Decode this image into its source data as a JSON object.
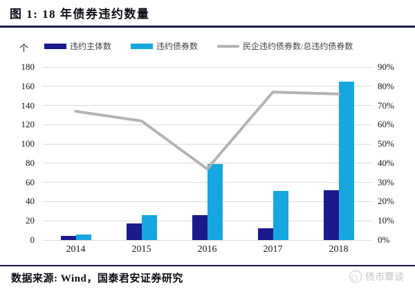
{
  "title": "图 1: 18 年债券违约数量",
  "unit_label": "个",
  "source_note": "数据来源: Wind，国泰君安证券研究",
  "watermark": {
    "text": "债市覃谈"
  },
  "colors": {
    "rule": "#15154b",
    "gridline": "#dadada",
    "entity_bar": "#1a1a8c",
    "bond_bar": "#17a7e0",
    "ratio_line": "#b3b3b3"
  },
  "chart_data": {
    "type": "bar",
    "subtype": "grouped-bar-with-line",
    "title": "18 年债券违约数量",
    "categories": [
      "2014",
      "2015",
      "2016",
      "2017",
      "2018"
    ],
    "series": [
      {
        "name": "违约主体数",
        "type": "bar",
        "axis": "left",
        "color": "#1a1a8c",
        "values": [
          4,
          17,
          26,
          12,
          52
        ]
      },
      {
        "name": "违约债券数",
        "type": "bar",
        "axis": "left",
        "color": "#17a7e0",
        "values": [
          6,
          26,
          79,
          51,
          165
        ]
      },
      {
        "name": "民企违约债券数/总违约债券数",
        "type": "line",
        "axis": "right",
        "color": "#b3b3b3",
        "values_pct": [
          67,
          62,
          37,
          77,
          76
        ]
      }
    ],
    "left_axis": {
      "min": 0,
      "max": 180,
      "step": 20,
      "unit": "个"
    },
    "right_axis": {
      "min": 0,
      "max": 90,
      "step": 10,
      "format": "percent"
    },
    "legend_position": "top",
    "grid": true
  }
}
